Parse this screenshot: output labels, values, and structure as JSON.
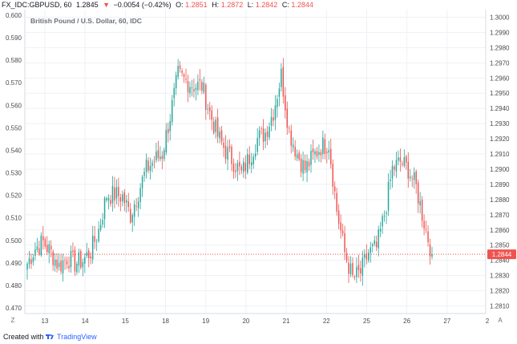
{
  "header": {
    "symbol": "FX_IDC:GBPUSD, 60",
    "last": "1.2845",
    "change": "−0.0054 (−0.42%)",
    "o_label": "O:",
    "o_val": "1.2851",
    "h_label": "H:",
    "h_val": "1.2872",
    "l_label": "L:",
    "l_val": "1.2842",
    "c_label": "C:",
    "c_val": "1.2844"
  },
  "chart_title": "British Pound / U.S. Dollar, 60, IDC",
  "footer": {
    "created_with": "Created with",
    "brand": "TradingView"
  },
  "axis_buttons": {
    "left": "Z",
    "right": "A"
  },
  "price_label": "1.2844",
  "colors": {
    "up": "#26a69a",
    "down": "#ef5350",
    "grid": "#eef1f5",
    "price_line": "#ef5350"
  },
  "chart_data": {
    "type": "candlestick",
    "title": "British Pound / U.S. Dollar, 60, IDC",
    "y_right_range": [
      1.2805,
      1.3005
    ],
    "y_left_range": [
      0.4675,
      0.6025
    ],
    "y_right_ticks": [
      "1.3000",
      "1.2990",
      "1.2980",
      "1.2970",
      "1.2960",
      "1.2950",
      "1.2940",
      "1.2930",
      "1.2920",
      "1.2910",
      "1.2900",
      "1.2890",
      "1.2880",
      "1.2870",
      "1.2860",
      "1.2850",
      "1.2840",
      "1.2830",
      "1.2820",
      "1.2810"
    ],
    "y_left_ticks": [
      "0.600",
      "0.590",
      "0.580",
      "0.570",
      "0.560",
      "0.550",
      "0.540",
      "0.530",
      "0.520",
      "0.510",
      "0.500",
      "0.490",
      "0.480",
      "0.470"
    ],
    "x_ticks": [
      "13",
      "14",
      "15",
      "18",
      "19",
      "20",
      "21",
      "22",
      "25",
      "26",
      "27",
      "2"
    ],
    "last_price": 1.2844,
    "close_path": [
      [
        0,
        1.2838
      ],
      [
        4,
        1.2848
      ],
      [
        8,
        1.2852
      ],
      [
        12,
        1.2845
      ],
      [
        16,
        1.2836
      ],
      [
        20,
        1.2842
      ],
      [
        24,
        1.2838
      ],
      [
        28,
        1.284
      ],
      [
        32,
        1.2846
      ],
      [
        36,
        1.286
      ],
      [
        40,
        1.2883
      ],
      [
        44,
        1.2883
      ],
      [
        48,
        1.2882
      ],
      [
        52,
        1.287
      ],
      [
        56,
        1.2885
      ],
      [
        60,
        1.29
      ],
      [
        64,
        1.2906
      ],
      [
        68,
        1.291
      ],
      [
        72,
        1.2935
      ],
      [
        76,
        1.2962
      ],
      [
        80,
        1.2958
      ],
      [
        84,
        1.2955
      ],
      [
        88,
        1.2955
      ],
      [
        92,
        1.2937
      ],
      [
        96,
        1.2922
      ],
      [
        100,
        1.2912
      ],
      [
        104,
        1.2905
      ],
      [
        108,
        1.2897
      ],
      [
        112,
        1.2908
      ],
      [
        116,
        1.292
      ],
      [
        120,
        1.2924
      ],
      [
        124,
        1.2938
      ],
      [
        128,
        1.2962
      ],
      [
        132,
        1.2925
      ],
      [
        136,
        1.291
      ],
      [
        140,
        1.29
      ],
      [
        144,
        1.2908
      ],
      [
        148,
        1.2915
      ],
      [
        152,
        1.2917
      ],
      [
        156,
        1.2873
      ],
      [
        160,
        1.2845
      ],
      [
        164,
        1.2828
      ],
      [
        168,
        1.2832
      ],
      [
        172,
        1.2845
      ],
      [
        176,
        1.2848
      ],
      [
        180,
        1.287
      ],
      [
        184,
        1.29
      ],
      [
        188,
        1.2905
      ],
      [
        192,
        1.29
      ],
      [
        196,
        1.2888
      ],
      [
        200,
        1.2865
      ],
      [
        204,
        1.2844
      ]
    ]
  }
}
